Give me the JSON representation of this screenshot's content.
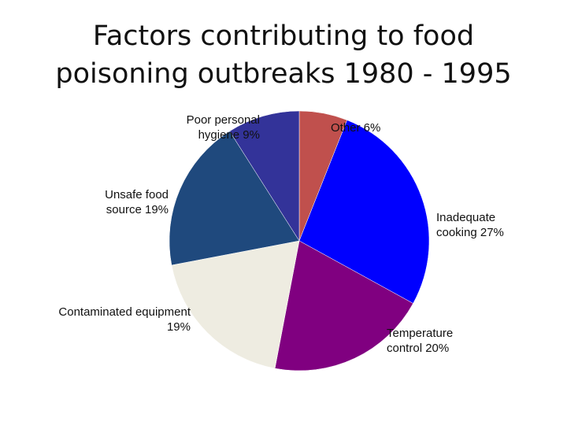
{
  "slide": {
    "title_line1": "Factors contributing to food",
    "title_line2": "poisoning outbreaks 1980 - 1995"
  },
  "chart_data": {
    "type": "pie",
    "title": "Factors contributing to food poisoning outbreaks 1980 - 1995",
    "slices": [
      {
        "name": "Other",
        "value": 6,
        "color": "#c0504d",
        "label_line1": "Other 6%",
        "label_line2": ""
      },
      {
        "name": "Inadequate cooking",
        "value": 27,
        "color": "#0000ff",
        "label_line1": "Inadequate",
        "label_line2": "cooking 27%"
      },
      {
        "name": "Temperature control",
        "value": 20,
        "color": "#800080",
        "label_line1": "Temperature",
        "label_line2": "control 20%"
      },
      {
        "name": "Contaminated equipment",
        "value": 19,
        "color": "#eeece1",
        "label_line1": "Contaminated equipment",
        "label_line2": "19%"
      },
      {
        "name": "Unsafe food source",
        "value": 19,
        "color": "#1f497d",
        "label_line1": "Unsafe food",
        "label_line2": "source 19%"
      },
      {
        "name": "Poor personal hygiene",
        "value": 9,
        "color": "#333399",
        "label_line1": "Poor personal",
        "label_line2": "hygiene 9%"
      }
    ]
  }
}
